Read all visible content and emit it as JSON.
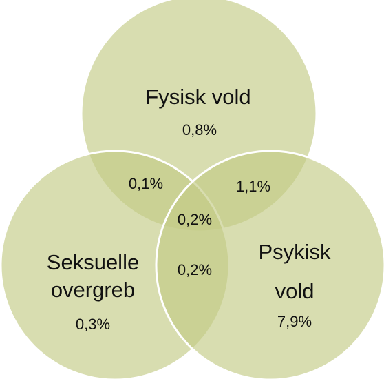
{
  "sets": [
    {
      "label": [
        "Fysisk vold"
      ],
      "value": "0,8%"
    },
    {
      "label": [
        "Seksuelle",
        "overgreb"
      ],
      "value": "0,3%"
    },
    {
      "label": [
        "Psykisk",
        "vold"
      ],
      "value": "7,9%"
    }
  ],
  "intersections": [
    {
      "sets": "Fysisk vold & Seksuelle overgreb",
      "value": "0,1%"
    },
    {
      "sets": "Fysisk vold & Psykisk vold",
      "value": "1,1%"
    },
    {
      "sets": "Seksuelle overgreb & Psykisk vold",
      "value": "0,2%"
    },
    {
      "sets": "all",
      "value": "0,2%"
    }
  ]
}
